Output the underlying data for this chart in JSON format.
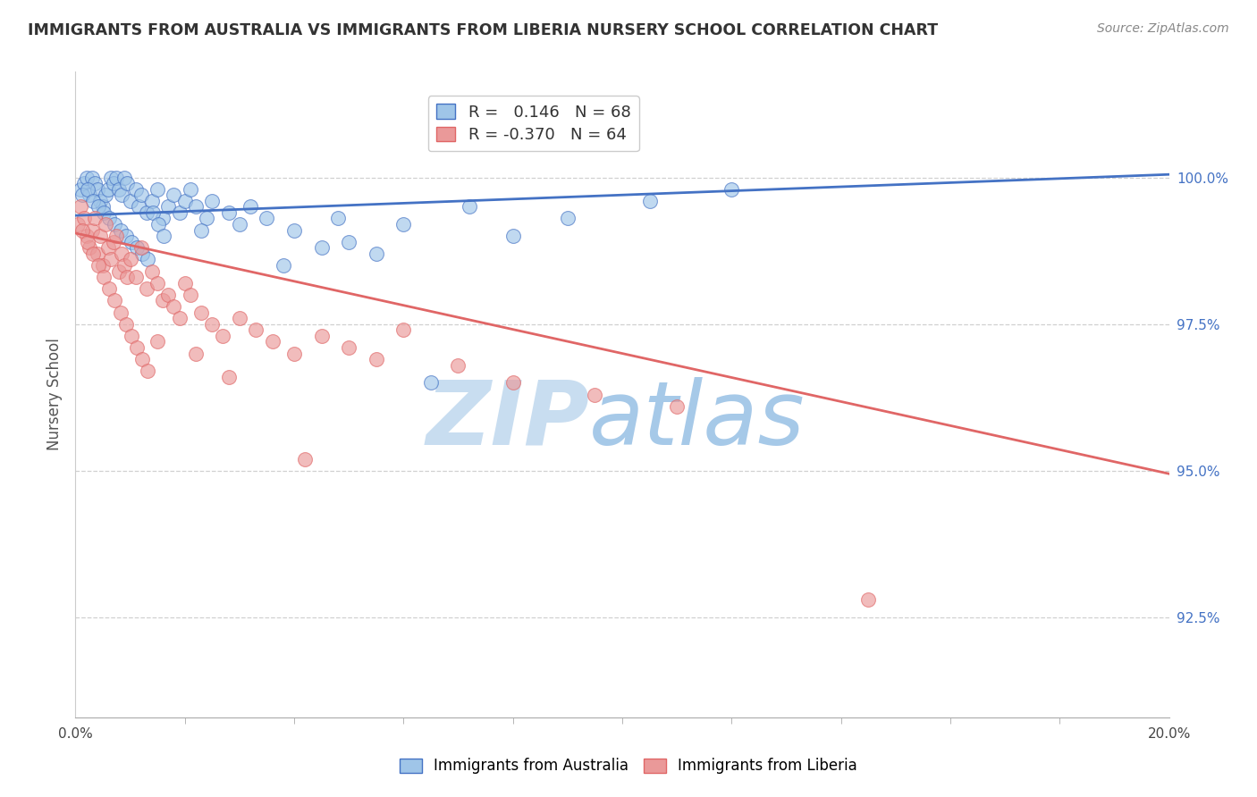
{
  "title": "IMMIGRANTS FROM AUSTRALIA VS IMMIGRANTS FROM LIBERIA NURSERY SCHOOL CORRELATION CHART",
  "source": "Source: ZipAtlas.com",
  "ylabel": "Nursery School",
  "ytick_values": [
    92.5,
    95.0,
    97.5,
    100.0
  ],
  "xmin": 0.0,
  "xmax": 20.0,
  "ymin": 90.8,
  "ymax": 101.8,
  "r_australia": 0.146,
  "n_australia": 68,
  "r_liberia": -0.37,
  "n_liberia": 64,
  "color_australia": "#9fc5e8",
  "color_liberia": "#ea9999",
  "trendline_australia": "#4472c4",
  "trendline_liberia": "#e06666",
  "background": "#ffffff",
  "aus_trend_y0": 99.35,
  "aus_trend_y20": 100.05,
  "lib_trend_y0": 99.05,
  "lib_trend_y20": 94.95,
  "australia_x": [
    0.1,
    0.15,
    0.2,
    0.25,
    0.3,
    0.35,
    0.4,
    0.45,
    0.5,
    0.55,
    0.6,
    0.65,
    0.7,
    0.75,
    0.8,
    0.85,
    0.9,
    0.95,
    1.0,
    1.1,
    1.15,
    1.2,
    1.3,
    1.4,
    1.5,
    1.6,
    1.7,
    1.8,
    1.9,
    2.0,
    2.1,
    2.2,
    2.4,
    2.5,
    2.8,
    3.0,
    3.2,
    3.5,
    4.0,
    4.5,
    5.0,
    5.5,
    6.0,
    7.2,
    8.0,
    9.0,
    10.5,
    12.0,
    0.12,
    0.22,
    0.32,
    0.42,
    0.52,
    0.62,
    0.72,
    0.82,
    0.92,
    1.02,
    1.12,
    1.22,
    1.32,
    1.42,
    1.52,
    1.62,
    2.3,
    3.8,
    4.8,
    6.5
  ],
  "australia_y": [
    99.8,
    99.9,
    100.0,
    99.7,
    100.0,
    99.9,
    99.8,
    99.6,
    99.5,
    99.7,
    99.8,
    100.0,
    99.9,
    100.0,
    99.8,
    99.7,
    100.0,
    99.9,
    99.6,
    99.8,
    99.5,
    99.7,
    99.4,
    99.6,
    99.8,
    99.3,
    99.5,
    99.7,
    99.4,
    99.6,
    99.8,
    99.5,
    99.3,
    99.6,
    99.4,
    99.2,
    99.5,
    99.3,
    99.1,
    98.8,
    98.9,
    98.7,
    99.2,
    99.5,
    99.0,
    99.3,
    99.6,
    99.8,
    99.7,
    99.8,
    99.6,
    99.5,
    99.4,
    99.3,
    99.2,
    99.1,
    99.0,
    98.9,
    98.8,
    98.7,
    98.6,
    99.4,
    99.2,
    99.0,
    99.1,
    98.5,
    99.3,
    96.5
  ],
  "liberia_x": [
    0.05,
    0.1,
    0.15,
    0.2,
    0.25,
    0.3,
    0.35,
    0.4,
    0.45,
    0.5,
    0.55,
    0.6,
    0.65,
    0.7,
    0.75,
    0.8,
    0.85,
    0.9,
    0.95,
    1.0,
    1.1,
    1.2,
    1.3,
    1.4,
    1.5,
    1.6,
    1.7,
    1.8,
    1.9,
    2.0,
    2.1,
    2.3,
    2.5,
    2.7,
    3.0,
    3.3,
    3.6,
    4.0,
    4.5,
    5.0,
    5.5,
    6.0,
    7.0,
    8.0,
    9.5,
    11.0,
    0.12,
    0.22,
    0.32,
    0.42,
    0.52,
    0.62,
    0.72,
    0.82,
    0.92,
    1.02,
    1.12,
    1.22,
    1.32,
    1.5,
    2.2,
    2.8,
    4.2,
    14.5
  ],
  "liberia_y": [
    99.2,
    99.5,
    99.3,
    99.0,
    98.8,
    99.1,
    99.3,
    98.7,
    99.0,
    98.5,
    99.2,
    98.8,
    98.6,
    98.9,
    99.0,
    98.4,
    98.7,
    98.5,
    98.3,
    98.6,
    98.3,
    98.8,
    98.1,
    98.4,
    98.2,
    97.9,
    98.0,
    97.8,
    97.6,
    98.2,
    98.0,
    97.7,
    97.5,
    97.3,
    97.6,
    97.4,
    97.2,
    97.0,
    97.3,
    97.1,
    96.9,
    97.4,
    96.8,
    96.5,
    96.3,
    96.1,
    99.1,
    98.9,
    98.7,
    98.5,
    98.3,
    98.1,
    97.9,
    97.7,
    97.5,
    97.3,
    97.1,
    96.9,
    96.7,
    97.2,
    97.0,
    96.6,
    95.2,
    92.8
  ]
}
